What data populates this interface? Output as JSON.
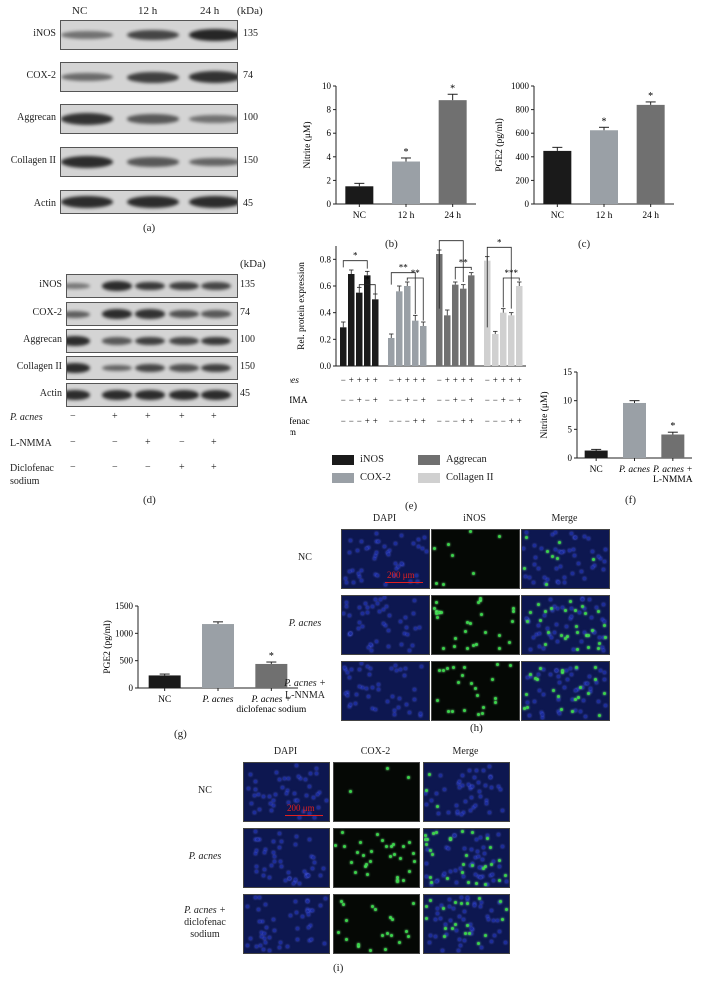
{
  "panel_a": {
    "letter": "(a)",
    "columns": [
      "NC",
      "12 h",
      "24 h"
    ],
    "kda_label": "(kDa)",
    "rows": [
      {
        "protein": "iNOS",
        "kda": "135",
        "intensity": [
          0.35,
          0.7,
          0.95
        ]
      },
      {
        "protein": "COX-2",
        "kda": "74",
        "intensity": [
          0.4,
          0.75,
          0.85
        ]
      },
      {
        "protein": "Aggrecan",
        "kda": "100",
        "intensity": [
          0.85,
          0.55,
          0.35
        ]
      },
      {
        "protein": "Collagen II",
        "kda": "150",
        "intensity": [
          0.9,
          0.55,
          0.45
        ]
      },
      {
        "protein": "Actin",
        "kda": "45",
        "intensity": [
          0.9,
          0.9,
          0.9
        ]
      }
    ]
  },
  "panel_d": {
    "letter": "(d)",
    "kda_label": "(kDa)",
    "rows": [
      {
        "protein": "iNOS",
        "kda": "135",
        "intensity": [
          0.3,
          0.9,
          0.8,
          0.75,
          0.7
        ]
      },
      {
        "protein": "COX-2",
        "kda": "74",
        "intensity": [
          0.5,
          0.9,
          0.85,
          0.6,
          0.55
        ]
      },
      {
        "protein": "Aggrecan",
        "kda": "100",
        "intensity": [
          0.9,
          0.55,
          0.75,
          0.7,
          0.8
        ]
      },
      {
        "protein": "Collagen II",
        "kda": "150",
        "intensity": [
          0.9,
          0.45,
          0.7,
          0.6,
          0.75
        ]
      },
      {
        "protein": "Actin",
        "kda": "45",
        "intensity": [
          0.9,
          0.9,
          0.9,
          0.9,
          0.9
        ]
      }
    ],
    "treatments": [
      {
        "name": "P. acnes",
        "signs": [
          "−",
          "+",
          "+",
          "+",
          "+"
        ]
      },
      {
        "name": "L-NMMA",
        "signs": [
          "−",
          "−",
          "+",
          "−",
          "+"
        ]
      },
      {
        "name": "Diclofenac\nsodium",
        "signs": [
          "−",
          "−",
          "−",
          "+",
          "+"
        ]
      }
    ]
  },
  "panel_e": {
    "letter": "(e)",
    "treatment_names": [
      "P. acnes",
      "L-NMMA",
      "Diclofenac\nsodium"
    ],
    "legend": [
      "iNOS",
      "COX-2",
      "Aggrecan",
      "Collagen II"
    ]
  },
  "panel_h": {
    "letter": "(h)",
    "columns": [
      "DAPI",
      "iNOS",
      "Merge"
    ],
    "rows": [
      "NC",
      "P. acnes",
      "P. acnes +\nL-NNMA"
    ],
    "scale_bar": "200 μm"
  },
  "panel_i": {
    "letter": "(i)",
    "columns": [
      "DAPI",
      "COX-2",
      "Merge"
    ],
    "rows": [
      "NC",
      "P. acnes",
      "P. acnes +\ndiclofenac\nsodium"
    ],
    "scale_bar": "200 μm"
  },
  "colors": {
    "black": "#1a1a1a",
    "dark_gray": "#707070",
    "mid_gray": "#9aa0a6",
    "light_gray": "#d0d0d0",
    "dapi_blue": "#1c2c9a",
    "green": "#3ad24a"
  },
  "chart_data": [
    {
      "panel": "(b)",
      "type": "bar",
      "categories": [
        "NC",
        "12 h",
        "24 h"
      ],
      "values": [
        1.5,
        3.6,
        8.8
      ],
      "errors": [
        0.25,
        0.3,
        0.5
      ],
      "significance": [
        "",
        "*",
        "*"
      ],
      "ylabel": "Nitrite (μM)",
      "ylim": [
        0,
        10
      ],
      "yticks": [
        0,
        2,
        4,
        6,
        8,
        10
      ],
      "colors": [
        "#1a1a1a",
        "#9aa0a6",
        "#707070"
      ]
    },
    {
      "panel": "(c)",
      "type": "bar",
      "categories": [
        "NC",
        "12 h",
        "24 h"
      ],
      "values": [
        450,
        625,
        840
      ],
      "errors": [
        30,
        25,
        25
      ],
      "significance": [
        "",
        "*",
        "*"
      ],
      "ylabel": "PGE2 (pg/ml)",
      "ylim": [
        0,
        1000
      ],
      "yticks": [
        0,
        200,
        400,
        600,
        800,
        1000
      ],
      "colors": [
        "#1a1a1a",
        "#9aa0a6",
        "#707070"
      ]
    },
    {
      "panel": "(e)",
      "type": "bar",
      "ylabel": "Rel. protein expression",
      "ylim": [
        0,
        0.9
      ],
      "yticks": [
        0.0,
        0.2,
        0.4,
        0.6,
        0.8
      ],
      "treatment_signs": {
        "P. acnes": [
          "−",
          "+",
          "+",
          "+",
          "+"
        ],
        "L-NMMA": [
          "−",
          "−",
          "+",
          "−",
          "+"
        ],
        "Diclofenac sodium": [
          "−",
          "−",
          "−",
          "+",
          "+"
        ]
      },
      "series": [
        {
          "name": "iNOS",
          "values": [
            0.29,
            0.69,
            0.55,
            0.68,
            0.5
          ],
          "errors": [
            0.04,
            0.03,
            0.04,
            0.03,
            0.04
          ],
          "color": "#1a1a1a"
        },
        {
          "name": "COX-2",
          "values": [
            0.21,
            0.56,
            0.6,
            0.34,
            0.3
          ],
          "errors": [
            0.03,
            0.04,
            0.03,
            0.04,
            0.03
          ],
          "color": "#9aa0a6"
        },
        {
          "name": "Aggrecan",
          "values": [
            0.84,
            0.38,
            0.61,
            0.58,
            0.68
          ],
          "errors": [
            0.03,
            0.04,
            0.02,
            0.03,
            0.02
          ],
          "color": "#707070"
        },
        {
          "name": "Collagen II",
          "values": [
            0.79,
            0.24,
            0.4,
            0.38,
            0.6
          ],
          "errors": [
            0.03,
            0.02,
            0.03,
            0.02,
            0.03
          ],
          "color": "#d0d0d0"
        }
      ],
      "significance_labels": [
        "*",
        "*",
        "**",
        "**",
        "***",
        "**",
        "*",
        "***"
      ]
    },
    {
      "panel": "(f)",
      "type": "bar",
      "categories": [
        "NC",
        "P. acnes",
        "P. acnes +\nL-NMMA"
      ],
      "values": [
        1.3,
        9.6,
        4.1
      ],
      "errors": [
        0.2,
        0.4,
        0.4
      ],
      "significance": [
        "",
        "",
        "*"
      ],
      "ylabel": "Nitrite (μM)",
      "ylim": [
        0,
        15
      ],
      "yticks": [
        0,
        5,
        10,
        15
      ],
      "colors": [
        "#1a1a1a",
        "#9aa0a6",
        "#707070"
      ]
    },
    {
      "panel": "(g)",
      "type": "bar",
      "categories": [
        "NC",
        "P. acnes",
        "P. acnes +\ndiclofenac sodium"
      ],
      "values": [
        230,
        1170,
        440
      ],
      "errors": [
        25,
        40,
        35
      ],
      "significance": [
        "",
        "",
        "*"
      ],
      "ylabel": "PGE2 (pg/ml)",
      "ylim": [
        0,
        1500
      ],
      "yticks": [
        0,
        500,
        1000,
        1500
      ],
      "colors": [
        "#1a1a1a",
        "#9aa0a6",
        "#707070"
      ]
    }
  ]
}
